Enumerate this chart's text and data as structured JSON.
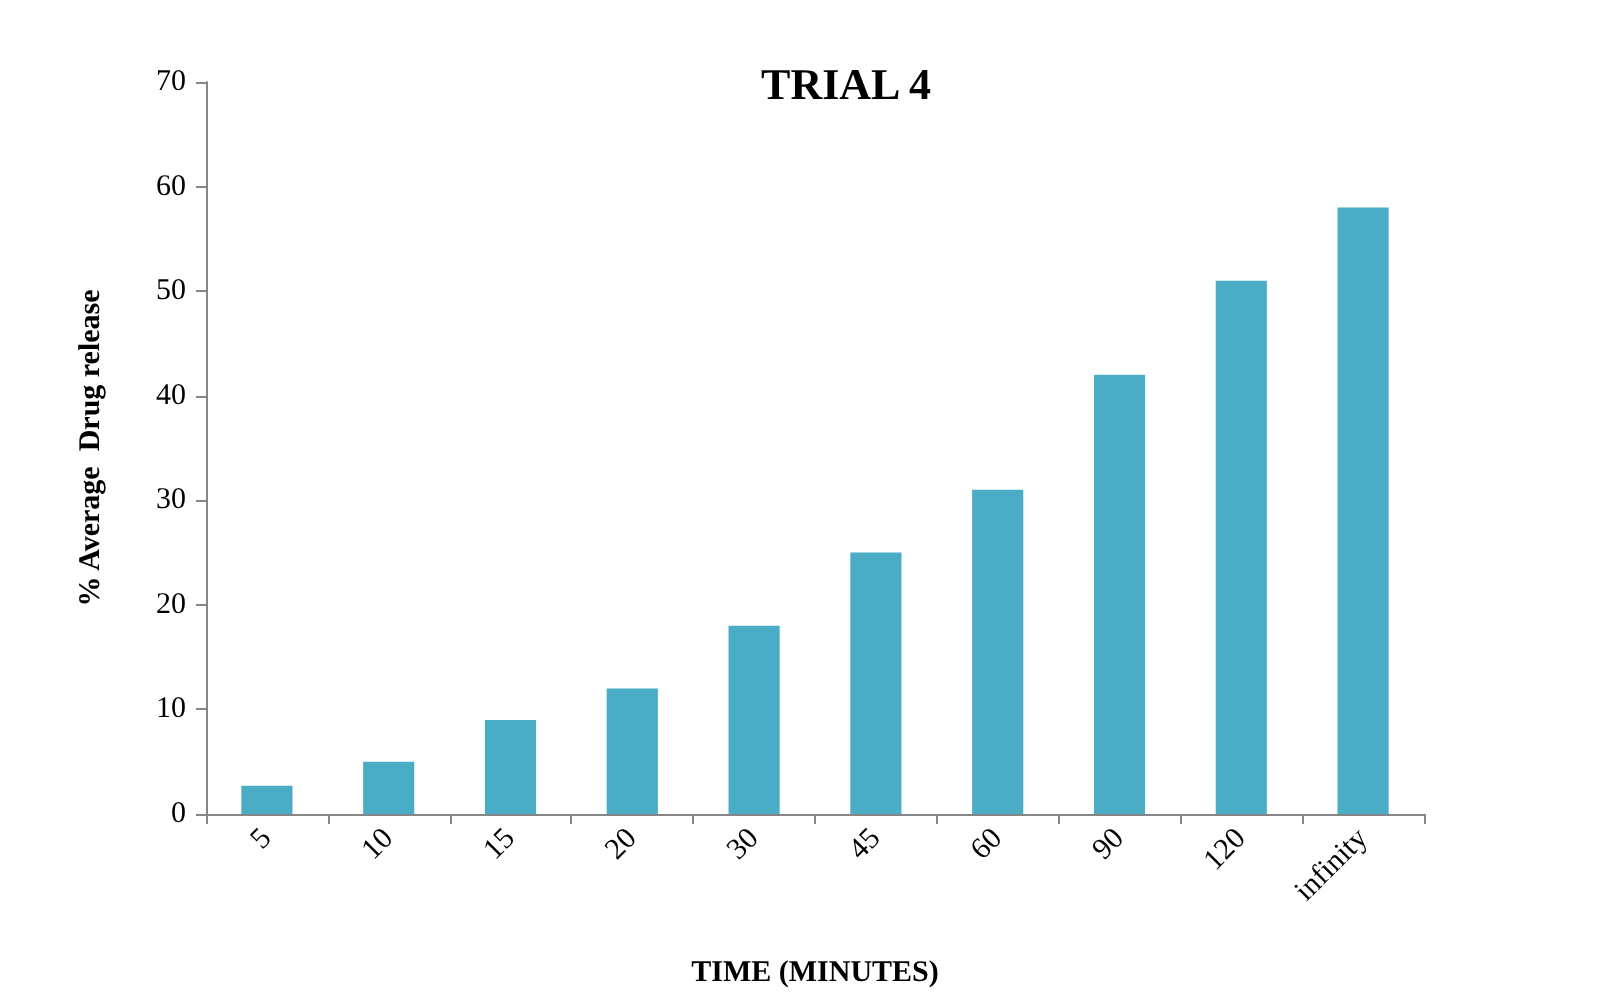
{
  "chart_data": {
    "type": "bar",
    "title": "TRIAL 4",
    "xlabel": "TIME (MINUTES)",
    "ylabel": "% Average  Drug release",
    "categories": [
      "5",
      "10",
      "15",
      "20",
      "30",
      "45",
      "60",
      "90",
      "120",
      "infinity"
    ],
    "values": [
      2.7,
      5,
      9,
      12,
      18,
      25,
      31,
      42,
      51,
      58
    ],
    "color": "#4bacc6",
    "ylim": [
      0,
      70
    ],
    "yticks": [
      0,
      10,
      20,
      30,
      40,
      50,
      60,
      70
    ],
    "grid": false
  }
}
